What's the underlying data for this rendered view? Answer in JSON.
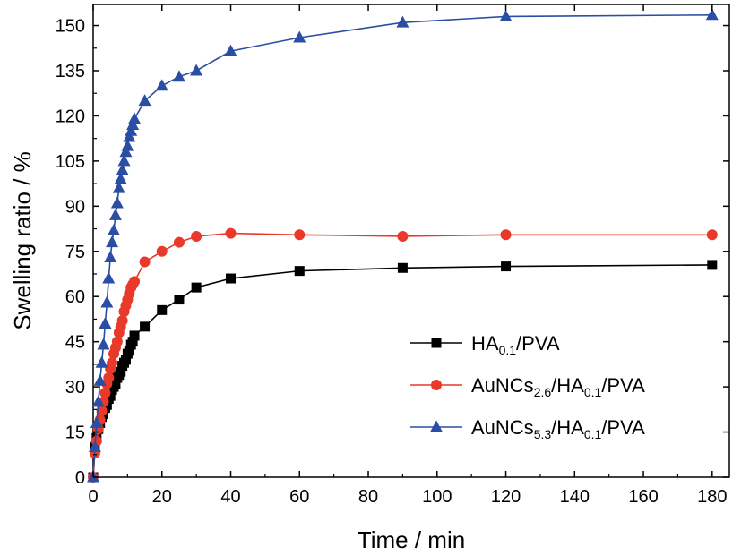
{
  "chart_data": {
    "type": "line",
    "xlabel": "Time / min",
    "ylabel": "Swelling ratio / %",
    "xlim": [
      0,
      185
    ],
    "ylim": [
      0,
      157
    ],
    "xticks": [
      0,
      20,
      40,
      60,
      80,
      100,
      120,
      140,
      160,
      180
    ],
    "yticks": [
      0,
      15,
      30,
      45,
      60,
      75,
      90,
      105,
      120,
      135,
      150
    ],
    "grid": false,
    "legend_position": "bottom-right",
    "series": [
      {
        "name": "HA0.1/PVA",
        "legend_parts": [
          {
            "t": "HA"
          },
          {
            "t": "0.1",
            "sub": true
          },
          {
            "t": "/PVA"
          }
        ],
        "color": "#000000",
        "marker": "square",
        "x": [
          0,
          0.5,
          1,
          1.5,
          2,
          2.5,
          3,
          3.5,
          4,
          4.5,
          5,
          5.5,
          6,
          6.5,
          7,
          7.5,
          8,
          8.5,
          9,
          9.5,
          10,
          10.5,
          11,
          11.5,
          12,
          15,
          20,
          25,
          30,
          40,
          60,
          90,
          120,
          180
        ],
        "y": [
          0,
          10,
          13,
          16,
          18,
          20,
          21,
          23,
          24,
          26,
          27,
          29,
          30,
          31,
          33,
          34,
          35,
          37,
          38,
          39,
          41,
          42,
          44,
          45,
          47,
          50,
          55.5,
          59,
          63,
          66,
          68.5,
          69.5,
          70,
          70.5
        ]
      },
      {
        "name": "AuNCs2.6/HA0.1/PVA",
        "legend_parts": [
          {
            "t": "AuNCs"
          },
          {
            "t": "2.6",
            "sub": true
          },
          {
            "t": "/HA"
          },
          {
            "t": "0.1",
            "sub": true
          },
          {
            "t": "/PVA"
          }
        ],
        "color": "#e8392a",
        "marker": "circle",
        "x": [
          0,
          0.5,
          1,
          1.5,
          2,
          2.5,
          3,
          3.5,
          4,
          4.5,
          5,
          5.5,
          6,
          6.5,
          7,
          7.5,
          8,
          8.5,
          9,
          9.5,
          10,
          10.5,
          11,
          11.5,
          12,
          15,
          20,
          25,
          30,
          40,
          60,
          90,
          120,
          180
        ],
        "y": [
          0,
          8,
          12,
          16,
          19,
          22,
          25,
          28,
          31,
          33,
          36,
          38,
          41,
          43,
          45,
          48,
          50,
          52,
          55,
          57,
          59,
          61,
          63,
          64,
          65,
          71.5,
          75,
          78,
          80,
          81,
          80.5,
          80,
          80.5,
          80.5
        ]
      },
      {
        "name": "AuNCs5.3/HA0.1/PVA",
        "legend_parts": [
          {
            "t": "AuNCs"
          },
          {
            "t": "5.3",
            "sub": true
          },
          {
            "t": "/HA"
          },
          {
            "t": "0.1",
            "sub": true
          },
          {
            "t": "/PVA"
          }
        ],
        "color": "#2b4ea5",
        "marker": "triangle",
        "x": [
          0,
          0.5,
          1,
          1.5,
          2,
          2.5,
          3,
          3.5,
          4,
          4.5,
          5,
          5.5,
          6,
          6.5,
          7,
          7.5,
          8,
          8.5,
          9,
          9.5,
          10,
          10.5,
          11,
          11.5,
          12,
          15,
          20,
          25,
          30,
          40,
          60,
          90,
          120,
          180
        ],
        "y": [
          0,
          10,
          18,
          25,
          32,
          38,
          44,
          51,
          58,
          66,
          73,
          78,
          82,
          87,
          91,
          96,
          99,
          102,
          105,
          108,
          110,
          113,
          115,
          117,
          119,
          125,
          130,
          133,
          135,
          141.5,
          146,
          151,
          153,
          153.5
        ]
      }
    ]
  }
}
